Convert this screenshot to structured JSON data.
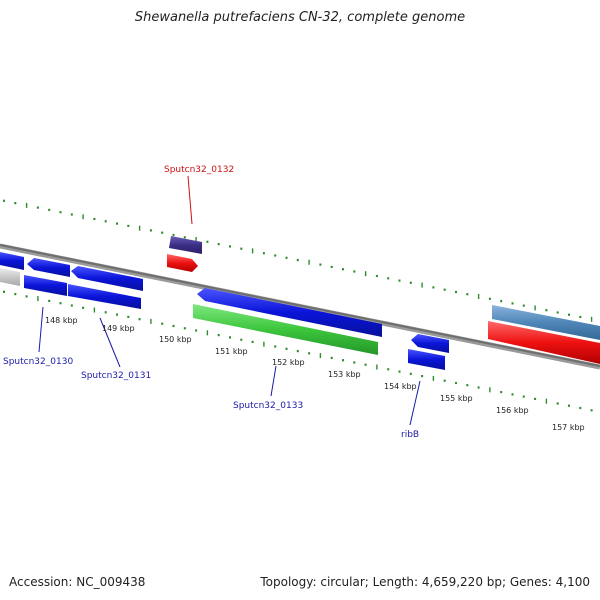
{
  "title": "Shewanella putrefaciens CN-32, complete genome",
  "footer": {
    "accession": "Accession: NC_009438",
    "summary": "Topology: circular; Length: 4,659,220 bp; Genes: 4,100"
  },
  "colors": {
    "backbone": "#7a7a7a",
    "tick": "#2e8b2e",
    "gene_blue": "#0a14d8",
    "gene_green": "#3cc63c",
    "gene_red": "#ee1111",
    "gene_purple": "#3b2f86",
    "gene_steelblue": "#4f86b8",
    "gene_grey": "#c8c8c8",
    "label_blue": "#1a1aa8",
    "label_red": "#cc1111"
  },
  "ticks": [
    "148 kbp",
    "149 kbp",
    "150 kbp",
    "151 kbp",
    "152 kbp",
    "153 kbp",
    "154 kbp",
    "155 kbp",
    "156 kbp",
    "157 kbp"
  ],
  "gene_labels": {
    "top": [
      {
        "name": "Sputcn32_0132",
        "color": "red"
      }
    ],
    "bottom": [
      {
        "name": "Sputcn32_0130",
        "color": "blue"
      },
      {
        "name": "Sputcn32_0131",
        "color": "blue"
      },
      {
        "name": "Sputcn32_0133",
        "color": "blue"
      },
      {
        "name": "ribB",
        "color": "blue"
      }
    ]
  }
}
